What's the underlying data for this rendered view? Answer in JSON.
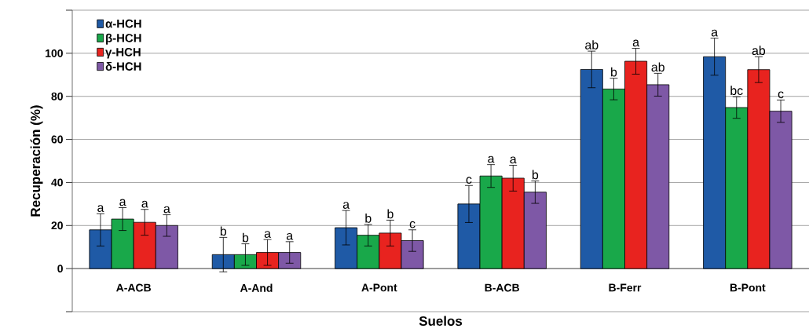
{
  "chart_data": {
    "type": "bar",
    "xlabel": "Suelos",
    "ylabel": "Recuperación (%)",
    "categories": [
      "A-ACB",
      "A-And",
      "A-Pont",
      "B-ACB",
      "B-Ferr",
      "B-Pont"
    ],
    "series": [
      {
        "name": "α-HCH",
        "color": "#1f5aa6",
        "values": [
          18,
          6.5,
          19,
          30,
          92.5,
          98.4
        ],
        "errors": [
          7.5,
          8,
          8,
          8.6,
          8.5,
          8.6
        ],
        "value_labels": [
          "a",
          "b",
          "a",
          "c",
          "ab",
          "a"
        ]
      },
      {
        "name": "β-HCH",
        "color": "#19a84a",
        "values": [
          23,
          6.5,
          15.5,
          43,
          83.4,
          74.8
        ],
        "errors": [
          5.3,
          5,
          5,
          5.3,
          5,
          5
        ],
        "value_labels": [
          "a",
          "b",
          "b",
          "a",
          "b",
          "bc"
        ]
      },
      {
        "name": "γ-HCH",
        "color": "#e8231f",
        "values": [
          21.5,
          7.5,
          16.5,
          42,
          96.3,
          92.4
        ],
        "errors": [
          6,
          6,
          6,
          6,
          6,
          6
        ],
        "value_labels": [
          "a",
          "a",
          "b",
          "a",
          "a",
          "ab"
        ]
      },
      {
        "name": "δ-HCH",
        "color": "#7e58a6",
        "values": [
          20,
          7.5,
          13,
          35.5,
          85.4,
          73.1
        ],
        "errors": [
          5,
          5,
          5,
          5.2,
          5.3,
          5.2
        ],
        "value_labels": [
          "a",
          "a",
          "c",
          "b",
          "ab",
          "c"
        ]
      }
    ],
    "ylim": [
      -20,
      120
    ],
    "yticks": [
      {
        "value": -20,
        "label": null
      },
      0,
      20,
      40,
      60,
      80,
      100,
      {
        "value": 120,
        "label": null
      }
    ],
    "grid": "y",
    "legend": "top left"
  }
}
